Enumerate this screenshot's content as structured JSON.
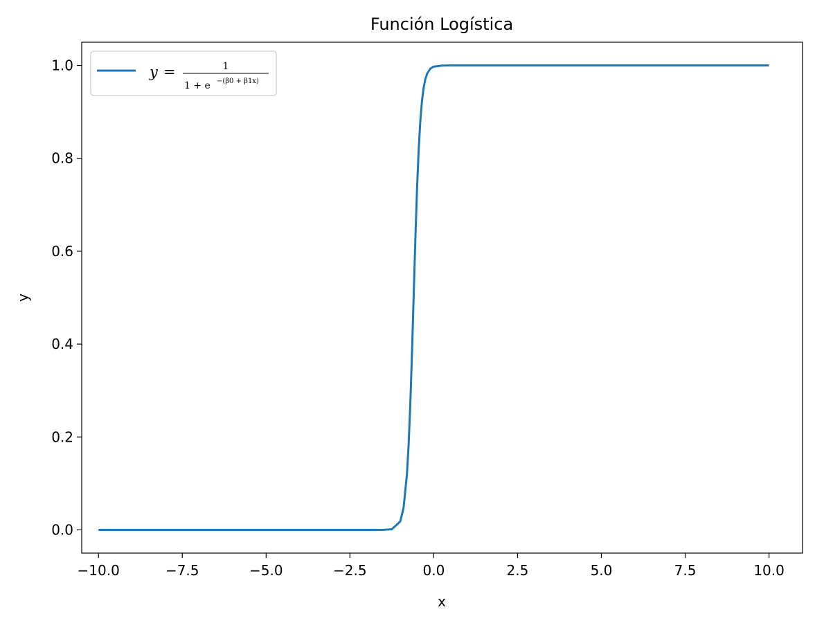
{
  "chart_data": {
    "type": "line",
    "title": "Función Logística",
    "xlabel": "x",
    "ylabel": "y",
    "xlim": [
      -10.5,
      11.0
    ],
    "ylim": [
      -0.05,
      1.05
    ],
    "x_ticks": [
      -10.0,
      -7.5,
      -5.0,
      -2.5,
      0.0,
      2.5,
      5.0,
      7.5,
      10.0
    ],
    "x_tick_labels": [
      "−10.0",
      "−7.5",
      "−5.0",
      "−2.5",
      "0.0",
      "2.5",
      "5.0",
      "7.5",
      "10.0"
    ],
    "y_ticks": [
      0.0,
      0.2,
      0.4,
      0.6,
      0.8,
      1.0
    ],
    "y_tick_labels": [
      "0.0",
      "0.2",
      "0.4",
      "0.6",
      "0.8",
      "1.0"
    ],
    "grid": false,
    "legend_position": "top-left",
    "series": [
      {
        "name": "y = 1 / (1 + e^−(β0 + β1x))",
        "color": "#1f77b4",
        "x": [
          -10.0,
          -3.0,
          -2.0,
          -1.5,
          -1.25,
          -1.0,
          -0.9,
          -0.8,
          -0.75,
          -0.7,
          -0.65,
          -0.6,
          -0.55,
          -0.5,
          -0.45,
          -0.4,
          -0.35,
          -0.3,
          -0.25,
          -0.2,
          -0.1,
          0.0,
          0.25,
          0.5,
          1.0,
          2.0,
          10.0
        ],
        "y": [
          0.0,
          0.0,
          0.0,
          0.0001,
          0.0013,
          0.018,
          0.0474,
          0.1192,
          0.1824,
          0.2689,
          0.3775,
          0.5,
          0.6225,
          0.7311,
          0.8176,
          0.8808,
          0.9241,
          0.9526,
          0.9707,
          0.982,
          0.9933,
          0.9975,
          0.9997,
          1.0,
          1.0,
          1.0,
          1.0
        ]
      }
    ]
  },
  "legend": {
    "lhs": "y",
    "eq": "=",
    "numerator": "1",
    "denominator_base": "1 + e",
    "denominator_exponent": "−(β0 + β1x)"
  }
}
